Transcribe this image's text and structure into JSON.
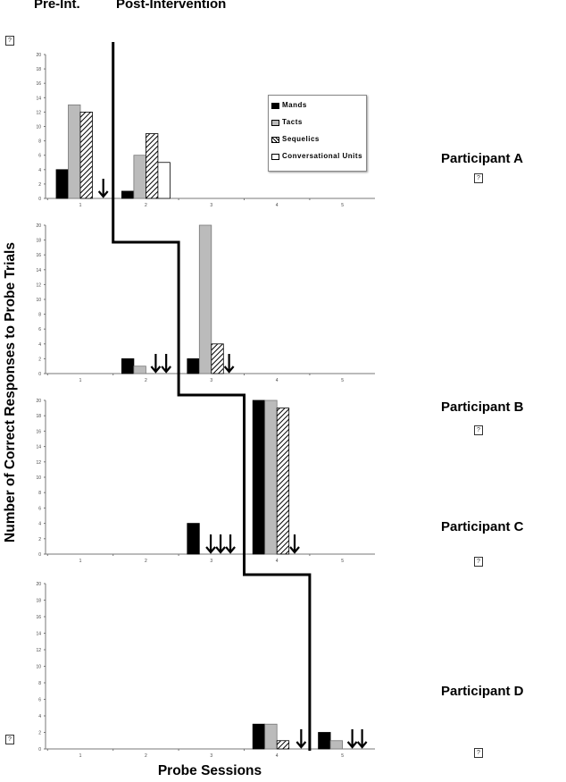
{
  "header": {
    "pre": "Pre-Int.",
    "post": "Post-Intervention"
  },
  "placeholder_glyph": "?",
  "chart_data": {
    "type": "bar",
    "title": "",
    "xlabel": "Probe Sessions",
    "ylabel": "Number of Correct Responses to Probe Trials",
    "categories": [
      "1",
      "2",
      "3",
      "4",
      "5"
    ],
    "ylim": [
      0,
      20
    ],
    "yticks": [
      0,
      2,
      4,
      6,
      8,
      10,
      12,
      14,
      16,
      18,
      20
    ],
    "legend": {
      "placement": "top-right of first panel",
      "entries": [
        "Mands",
        "Tacts",
        "Sequelics",
        "Conversational Units"
      ]
    },
    "series_colors": {
      "Mands": "#000000",
      "Tacts": "#bbbbbb",
      "Sequelics": "hatch",
      "Conversational Units": "#ffffff"
    },
    "panels": [
      {
        "participant": "Participant A",
        "intervention_after_session": 1.5,
        "series": [
          {
            "name": "Mands",
            "values": [
              4,
              1,
              null,
              null,
              null
            ]
          },
          {
            "name": "Tacts",
            "values": [
              13,
              6,
              null,
              null,
              null
            ]
          },
          {
            "name": "Sequelics",
            "values": [
              12,
              9,
              null,
              null,
              null
            ]
          },
          {
            "name": "Conversational Units",
            "values": [
              0,
              5,
              null,
              null,
              null
            ]
          }
        ],
        "arrows": [
          1.35
        ]
      },
      {
        "participant": "Participant B",
        "intervention_after_session": 2.5,
        "series": [
          {
            "name": "Mands",
            "values": [
              null,
              2,
              2,
              null,
              null
            ]
          },
          {
            "name": "Tacts",
            "values": [
              null,
              1,
              20,
              null,
              null
            ]
          },
          {
            "name": "Sequelics",
            "values": [
              null,
              0,
              4,
              null,
              null
            ]
          },
          {
            "name": "Conversational Units",
            "values": [
              null,
              0,
              0,
              null,
              null
            ]
          }
        ],
        "arrows": [
          2.15,
          2.31,
          3.27
        ]
      },
      {
        "participant": "Participant C",
        "intervention_after_session": 3.5,
        "series": [
          {
            "name": "Mands",
            "values": [
              null,
              null,
              4,
              20,
              null
            ]
          },
          {
            "name": "Tacts",
            "values": [
              null,
              null,
              0,
              20,
              null
            ]
          },
          {
            "name": "Sequelics",
            "values": [
              null,
              null,
              0,
              19,
              null
            ]
          },
          {
            "name": "Conversational Units",
            "values": [
              null,
              null,
              0,
              0,
              null
            ]
          }
        ],
        "arrows": [
          2.99,
          3.14,
          3.29,
          4.27
        ]
      },
      {
        "participant": "Participant D",
        "intervention_after_session": 4.5,
        "series": [
          {
            "name": "Mands",
            "values": [
              null,
              null,
              null,
              3,
              2
            ]
          },
          {
            "name": "Tacts",
            "values": [
              null,
              null,
              null,
              3,
              1
            ]
          },
          {
            "name": "Sequelics",
            "values": [
              null,
              null,
              null,
              1,
              0
            ]
          },
          {
            "name": "Conversational Units",
            "values": [
              null,
              null,
              null,
              0,
              0
            ]
          }
        ],
        "arrows": [
          4.37,
          5.15,
          5.3
        ]
      }
    ]
  }
}
